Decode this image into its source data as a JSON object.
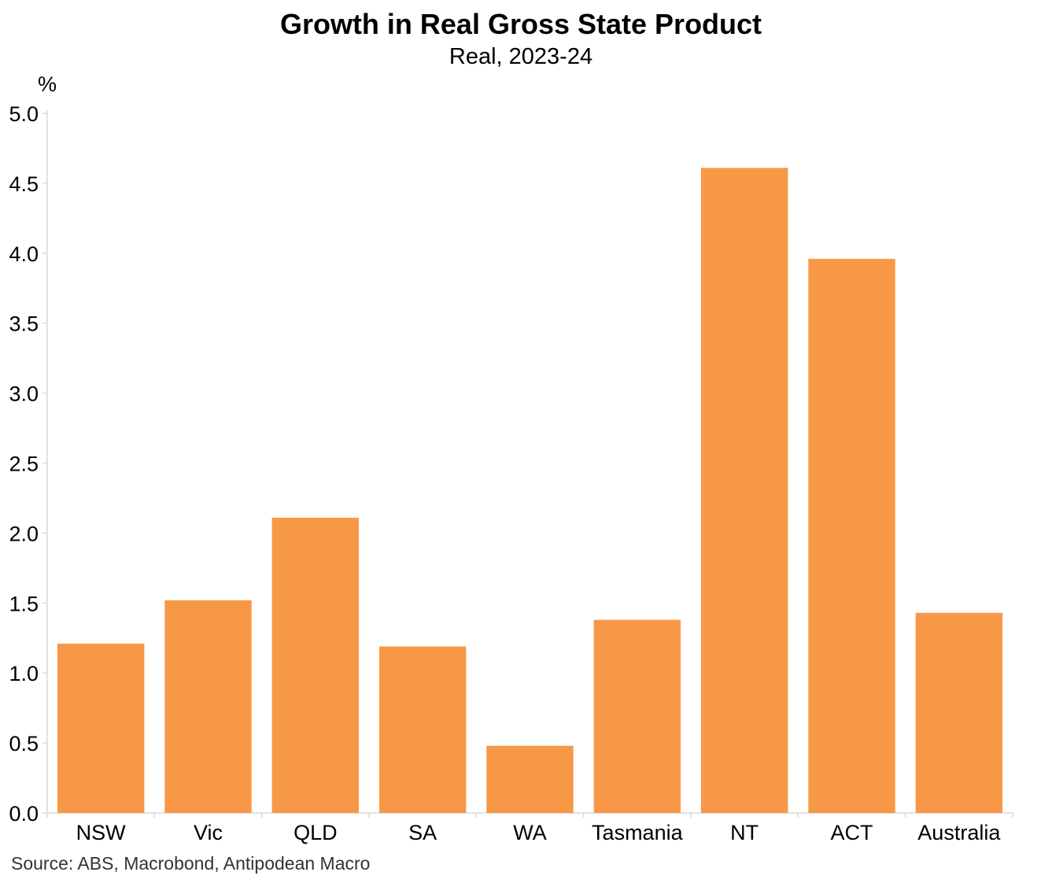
{
  "chart_data": {
    "type": "bar",
    "title": "Growth in Real Gross State Product",
    "subtitle": "Real, 2023-24",
    "ylabel": "%",
    "xlabel": "",
    "categories": [
      "NSW",
      "Vic",
      "QLD",
      "SA",
      "WA",
      "Tasmania",
      "NT",
      "ACT",
      "Australia"
    ],
    "values": [
      1.21,
      1.52,
      2.11,
      1.19,
      0.48,
      1.38,
      4.61,
      3.96,
      1.43
    ],
    "ylim": [
      0.0,
      5.0
    ],
    "yticks": [
      "0.0",
      "0.5",
      "1.0",
      "1.5",
      "2.0",
      "2.5",
      "3.0",
      "3.5",
      "4.0",
      "4.5",
      "5.0"
    ],
    "bar_color": "#f79847",
    "axis_color": "#d9d9d9",
    "grid": false,
    "legend": "none",
    "source": "Source: ABS, Macrobond, Antipodean Macro"
  }
}
